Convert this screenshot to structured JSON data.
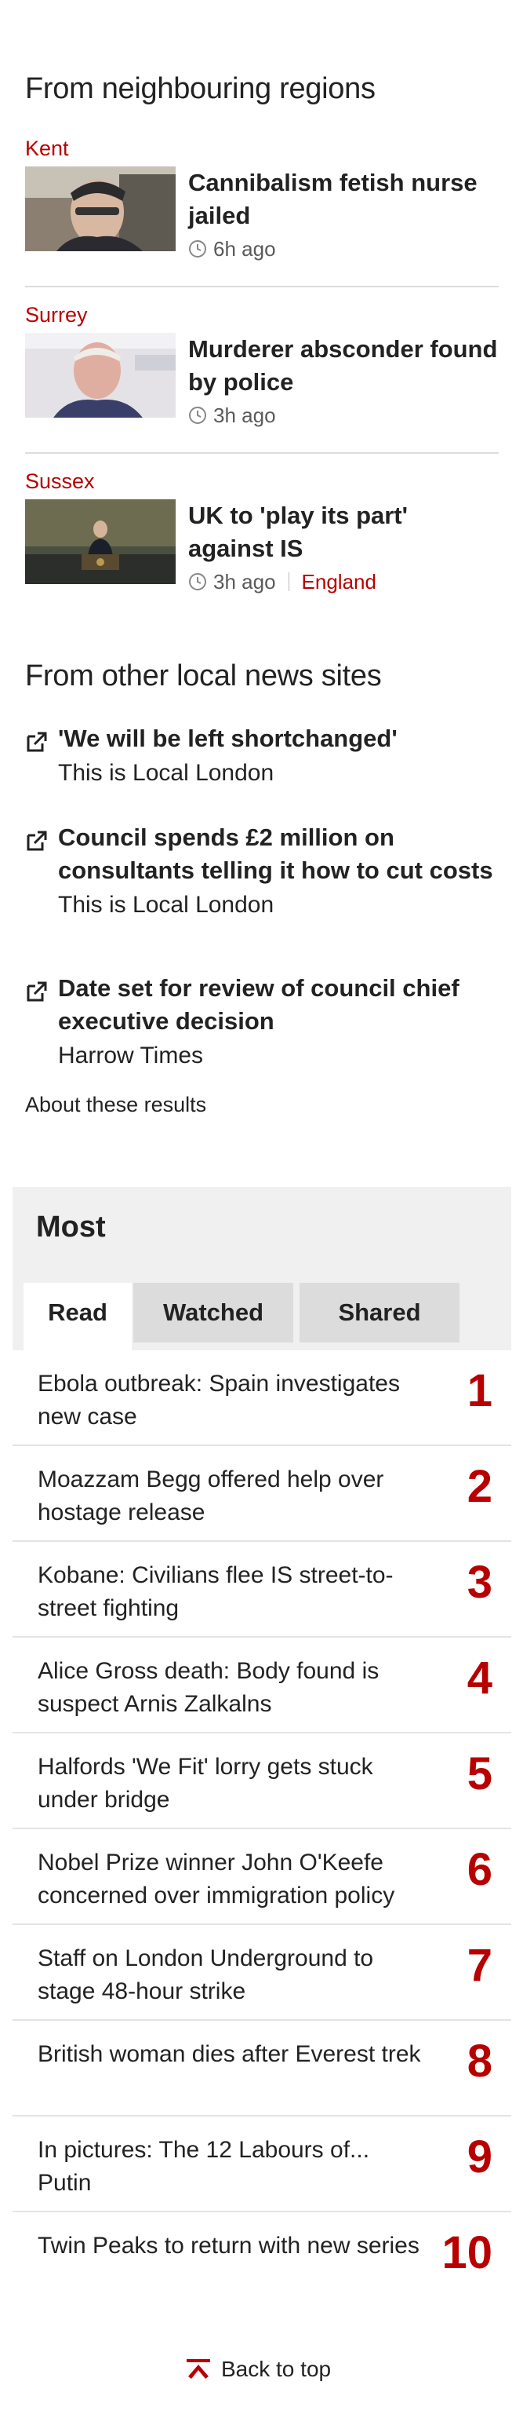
{
  "neighbouring": {
    "heading": "From neighbouring regions",
    "items": [
      {
        "region": "Kent",
        "title": "Cannibalism fetish nurse jailed",
        "time": "6h ago",
        "link": ""
      },
      {
        "region": "Surrey",
        "title": "Murderer absconder found by police",
        "time": "3h ago",
        "link": ""
      },
      {
        "region": "Sussex",
        "title": "UK to 'play its part' against IS",
        "time": "3h ago",
        "link": "England"
      }
    ]
  },
  "local_sites": {
    "heading": "From other local news sites",
    "items": [
      {
        "title": "'We will be left shortchanged'",
        "source": "This is Local London"
      },
      {
        "title": "Council spends £2 million on consultants telling it how to cut costs",
        "source": "This is Local London"
      },
      {
        "title": "Date set for review of council chief executive decision",
        "source": "Harrow Times"
      }
    ],
    "about": "About these results"
  },
  "most": {
    "heading": "Most",
    "tabs": [
      "Read",
      "Watched",
      "Shared"
    ],
    "items": [
      {
        "rank": "1",
        "headline": "Ebola outbreak: Spain investigates new case"
      },
      {
        "rank": "2",
        "headline": "Moazzam Begg offered help over hostage release"
      },
      {
        "rank": "3",
        "headline": "Kobane: Civilians flee IS street-to-street fighting"
      },
      {
        "rank": "4",
        "headline": "Alice Gross death: Body found is suspect Arnis Zalkalns"
      },
      {
        "rank": "5",
        "headline": "Halfords 'We Fit' lorry gets stuck under bridge"
      },
      {
        "rank": "6",
        "headline": "Nobel Prize winner John O'Keefe concerned over immigration policy"
      },
      {
        "rank": "7",
        "headline": "Staff on London Underground to stage 48-hour strike"
      },
      {
        "rank": "8",
        "headline": "British woman dies after Everest trek"
      },
      {
        "rank": "9",
        "headline": "In pictures: The 12 Labours of... Putin"
      },
      {
        "rank": "10",
        "headline": "Twin Peaks to return with new series"
      }
    ]
  },
  "footer": {
    "back_to_top": "Back to top"
  },
  "colors": {
    "accent": "#b80000",
    "text": "#222222",
    "panel": "#f0f0f0",
    "tab_inactive": "#dcdcdc"
  },
  "icons": [
    "clock-icon",
    "external-link-icon",
    "back-to-top-arrow-icon"
  ]
}
